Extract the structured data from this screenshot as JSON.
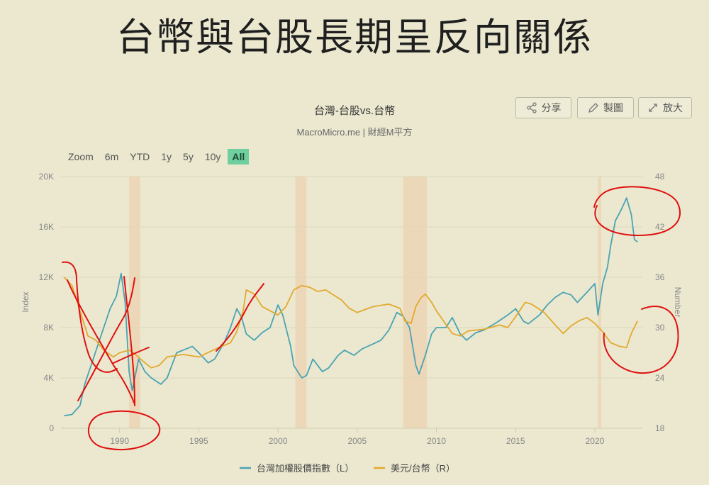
{
  "slide_title": "台幣與台股長期呈反向關係",
  "toolbar": {
    "share_label": "分享",
    "draw_label": "製圖",
    "expand_label": "放大",
    "share_icon": "share-icon",
    "draw_icon": "pencil-icon",
    "expand_icon": "expand-icon"
  },
  "range_selector": {
    "label": "Zoom",
    "buttons": [
      "6m",
      "YTD",
      "1y",
      "5y",
      "10y",
      "All"
    ],
    "selected": "All"
  },
  "chart_data": {
    "type": "line",
    "title": "台灣-台股vs.台幣",
    "subtitle": "MacroMicro.me | 財經M平方",
    "ylabel_left": "Index",
    "ylabel_right": "Number",
    "xlim": [
      1986.3,
      2023.0
    ],
    "ylim_left": [
      0,
      20000
    ],
    "ylim_right": [
      18,
      48
    ],
    "x_ticks": [
      1990,
      1995,
      2000,
      2005,
      2010,
      2015,
      2020
    ],
    "y_ticks_left": [
      "0",
      "4K",
      "8K",
      "12K",
      "16K",
      "20K"
    ],
    "y_ticks_left_values": [
      0,
      4000,
      8000,
      12000,
      16000,
      20000
    ],
    "y_ticks_right": [
      18,
      24,
      30,
      36,
      42,
      48
    ],
    "grid": true,
    "legend_position": "bottom",
    "recession_bands": [
      [
        1990.6,
        1991.3
      ],
      [
        2001.1,
        2001.8
      ],
      [
        2007.9,
        2009.4
      ],
      [
        2020.2,
        2020.4
      ]
    ],
    "colors": {
      "taiex": "#4aa3b3",
      "usdtwd": "#e3a92e",
      "recession": "#ecd5b4",
      "annotation": "#e01010"
    },
    "series": [
      {
        "name": "台灣加權股價指數（L）",
        "axis": "left",
        "x": [
          1986.5,
          1987.0,
          1987.5,
          1987.8,
          1988.2,
          1988.6,
          1989.0,
          1989.4,
          1989.8,
          1990.1,
          1990.35,
          1990.6,
          1990.8,
          1991.2,
          1991.6,
          1992.0,
          1992.6,
          1993.0,
          1993.6,
          1994.0,
          1994.6,
          1995.0,
          1995.6,
          1996.0,
          1996.6,
          1997.0,
          1997.4,
          1997.7,
          1998.0,
          1998.5,
          1999.0,
          1999.5,
          2000.0,
          2000.3,
          2000.8,
          2001.0,
          2001.5,
          2001.8,
          2002.2,
          2002.8,
          2003.2,
          2003.8,
          2004.2,
          2004.8,
          2005.3,
          2006.0,
          2006.5,
          2007.0,
          2007.5,
          2007.9,
          2008.3,
          2008.7,
          2008.9,
          2009.3,
          2009.7,
          2010.0,
          2010.6,
          2011.0,
          2011.5,
          2011.9,
          2012.5,
          2013.0,
          2013.8,
          2014.5,
          2015.0,
          2015.5,
          2015.8,
          2016.5,
          2017.0,
          2017.5,
          2018.0,
          2018.5,
          2018.9,
          2019.5,
          2020.0,
          2020.2,
          2020.5,
          2020.8,
          2021.0,
          2021.3,
          2021.6,
          2021.9,
          2022.0,
          2022.3,
          2022.5,
          2022.7
        ],
        "y": [
          1000,
          1100,
          1800,
          3500,
          5000,
          6500,
          8000,
          9500,
          10500,
          12300,
          10000,
          4500,
          3000,
          5500,
          4500,
          4000,
          3500,
          4000,
          6000,
          6200,
          6500,
          6000,
          5200,
          5500,
          6800,
          8000,
          9500,
          8800,
          7500,
          7000,
          7600,
          8000,
          9800,
          9000,
          6500,
          5000,
          4000,
          4200,
          5500,
          4500,
          4800,
          5800,
          6200,
          5800,
          6300,
          6700,
          7000,
          7800,
          9200,
          8900,
          8000,
          5000,
          4300,
          5800,
          7500,
          8000,
          8000,
          8800,
          7500,
          7000,
          7600,
          7800,
          8400,
          9000,
          9500,
          8500,
          8300,
          9000,
          9800,
          10400,
          10800,
          10600,
          10000,
          10800,
          11500,
          9000,
          11500,
          12800,
          14500,
          16500,
          17200,
          18000,
          18300,
          17000,
          15000,
          14800
        ]
      },
      {
        "name": "美元/台幣（R）",
        "axis": "right",
        "x": [
          1986.5,
          1987.0,
          1987.5,
          1988.0,
          1988.5,
          1989.0,
          1989.6,
          1990.0,
          1990.6,
          1991.0,
          1991.6,
          1992.0,
          1992.5,
          1993.0,
          1994.0,
          1995.0,
          1996.0,
          1997.0,
          1997.4,
          1997.8,
          1998.0,
          1998.5,
          1999.0,
          1999.5,
          2000.0,
          2000.5,
          2001.0,
          2001.5,
          2002.0,
          2002.5,
          2003.0,
          2004.0,
          2004.5,
          2005.0,
          2006.0,
          2007.0,
          2007.7,
          2008.0,
          2008.4,
          2008.7,
          2009.0,
          2009.3,
          2009.7,
          2010.0,
          2011.0,
          2011.5,
          2012.0,
          2013.0,
          2014.0,
          2014.5,
          2015.0,
          2015.6,
          2016.0,
          2016.8,
          2017.5,
          2018.0,
          2018.5,
          2019.0,
          2019.5,
          2020.0,
          2020.5,
          2021.0,
          2021.5,
          2022.0,
          2022.3,
          2022.7
        ],
        "y": [
          36,
          35,
          32,
          29,
          28.5,
          27.3,
          26.5,
          27,
          27.3,
          26.8,
          25.8,
          25.2,
          25.5,
          26.5,
          26.8,
          26.5,
          27.4,
          28.2,
          29.5,
          32,
          34.5,
          34,
          32.5,
          32,
          31.5,
          32.5,
          34.5,
          35,
          34.8,
          34.3,
          34.5,
          33.3,
          32.3,
          31.8,
          32.5,
          32.8,
          32.3,
          30.8,
          30.5,
          32.5,
          33.5,
          34,
          33,
          32,
          29.3,
          29,
          29.6,
          29.8,
          30.3,
          30,
          31.3,
          33,
          32.8,
          31.8,
          30.3,
          29.3,
          30.2,
          30.8,
          31.2,
          30.5,
          29.5,
          28.2,
          27.8,
          27.6,
          29.3,
          30.8
        ]
      }
    ]
  }
}
